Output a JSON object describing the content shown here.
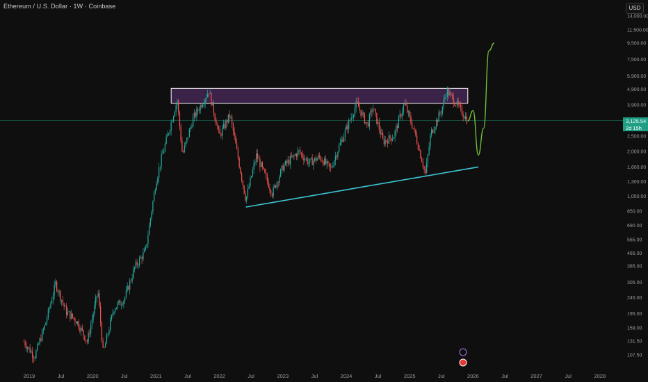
{
  "header": {
    "title": "Ethereum / U.S. Dollar · 1W · Coinbase",
    "currency": "USD"
  },
  "price_tag": {
    "price": "3,125.54",
    "countdown": "2d 15h",
    "color": "#1e9e83"
  },
  "colors": {
    "background": "#0f0f0f",
    "up_candle": "#26a69a",
    "down_candle": "#ef5350",
    "zone_fill": "#4a2a5e",
    "zone_border": "#ffffff",
    "trendline": "#3ec6d6",
    "projection": "#6fbf3b",
    "price_line": "#1e9e83"
  },
  "chart_data": {
    "type": "candlestick",
    "title": "Ethereum / U.S. Dollar · 1W · Coinbase",
    "y_scale": "log",
    "y_ticks": [
      "14,000.00",
      "11,500.00",
      "9,500.00",
      "7,500.00",
      "5,900.00",
      "4,900.00",
      "3,900.00",
      "3,125.54",
      "2,500.00",
      "2,000.00",
      "1,600.00",
      "1,300.00",
      "1,050.00",
      "850.00",
      "690.00",
      "565.00",
      "465.00",
      "385.00",
      "305.00",
      "245.00",
      "195.00",
      "159.00",
      "131.50",
      "107.50"
    ],
    "x_ticks": [
      "2019",
      "Jul",
      "2020",
      "Jul",
      "2021",
      "Jul",
      "2022",
      "Jul",
      "2023",
      "Jul",
      "2024",
      "Jul",
      "2025",
      "Jul",
      "2026",
      "Jul",
      "2027",
      "Jul",
      "2028"
    ],
    "price_path": [
      [
        "2018-12",
        130
      ],
      [
        "2019-02",
        105
      ],
      [
        "2019-04",
        165
      ],
      [
        "2019-06",
        300
      ],
      [
        "2019-08",
        200
      ],
      [
        "2019-10",
        175
      ],
      [
        "2019-12",
        130
      ],
      [
        "2020-02",
        270
      ],
      [
        "2020-03",
        110
      ],
      [
        "2020-05",
        210
      ],
      [
        "2020-07",
        240
      ],
      [
        "2020-09",
        380
      ],
      [
        "2020-11",
        480
      ],
      [
        "2021-01",
        1300
      ],
      [
        "2021-02",
        1800
      ],
      [
        "2021-05",
        4200
      ],
      [
        "2021-06",
        1900
      ],
      [
        "2021-08",
        3200
      ],
      [
        "2021-11",
        4800
      ],
      [
        "2022-01",
        2500
      ],
      [
        "2022-03",
        3400
      ],
      [
        "2022-06",
        1000
      ],
      [
        "2022-08",
        1900
      ],
      [
        "2022-11",
        1100
      ],
      [
        "2023-01",
        1600
      ],
      [
        "2023-04",
        2000
      ],
      [
        "2023-06",
        1700
      ],
      [
        "2023-08",
        1850
      ],
      [
        "2023-10",
        1550
      ],
      [
        "2023-12",
        2300
      ],
      [
        "2024-03",
        4000
      ],
      [
        "2024-05",
        2900
      ],
      [
        "2024-06",
        3800
      ],
      [
        "2024-08",
        2300
      ],
      [
        "2024-10",
        2500
      ],
      [
        "2024-12",
        4000
      ],
      [
        "2025-02",
        2600
      ],
      [
        "2025-04",
        1450
      ],
      [
        "2025-05",
        2600
      ],
      [
        "2025-07",
        3600
      ],
      [
        "2025-08",
        4800
      ],
      [
        "2025-10",
        3900
      ],
      [
        "2025-12",
        3125.54
      ]
    ],
    "resistance_zone": {
      "low": 4000,
      "high": 4950,
      "x_start": "2021-04",
      "x_end": "2025-12"
    },
    "support_trendline": {
      "start": [
        "2022-06",
        900
      ],
      "end": [
        "2026-02",
        1600
      ]
    },
    "projection": [
      [
        "2025-12",
        3100
      ],
      [
        "2026-01",
        3600
      ],
      [
        "2026-02",
        1900
      ],
      [
        "2026-03",
        2800
      ],
      [
        "2026-04",
        8500
      ],
      [
        "2026-05",
        9500
      ]
    ],
    "current_price": 3125.54,
    "grid": false
  }
}
